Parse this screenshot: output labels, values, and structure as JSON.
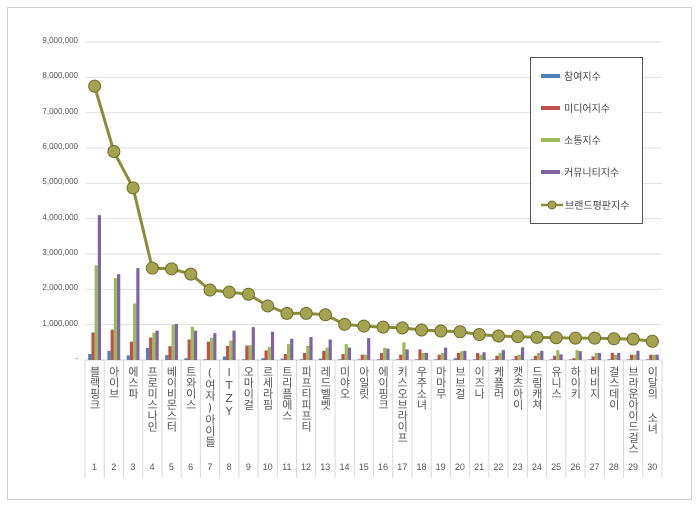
{
  "chart_data": {
    "type": "bar+line",
    "categories": [
      "블랙핑크",
      "아이브",
      "에스파",
      "프로미스나인",
      "베이비몬스터",
      "트와이스",
      "(여자)아이들",
      "ITZY",
      "오마이걸",
      "르세라핌",
      "트리플에스",
      "피프티피프티",
      "레드벨벳",
      "미야오",
      "아일릿",
      "에이핑크",
      "키스오브라이프",
      "우주소녀",
      "마마무",
      "브브걸",
      "이즈나",
      "케플러",
      "캣츠아이",
      "드림캐쳐",
      "유니스",
      "하이키",
      "비비지",
      "걸스데이",
      "브라운아이드걸스",
      "이달의 소녀"
    ],
    "ranks": [
      "1",
      "2",
      "3",
      "4",
      "5",
      "6",
      "7",
      "8",
      "9",
      "10",
      "11",
      "12",
      "13",
      "14",
      "15",
      "16",
      "17",
      "18",
      "19",
      "20",
      "21",
      "22",
      "23",
      "24",
      "25",
      "26",
      "27",
      "28",
      "29",
      "30"
    ],
    "ylim": [
      0,
      9000000
    ],
    "yticks": [
      "-",
      "1,000,000",
      "2,000,000",
      "3,000,000",
      "4,000,000",
      "5,000,000",
      "6,000,000",
      "7,000,000",
      "8,000,000",
      "9,000,000"
    ],
    "grid": true,
    "legend_position": "right",
    "series": [
      {
        "name": "참여지수",
        "type": "bar",
        "color": "#4f81bd",
        "values": [
          170000,
          260000,
          130000,
          340000,
          140000,
          50000,
          20000,
          100000,
          20000,
          50000,
          40000,
          20000,
          40000,
          20000,
          20000,
          20000,
          20000,
          20000,
          20000,
          50000,
          20000,
          20000,
          20000,
          20000,
          20000,
          20000,
          20000,
          20000,
          20000,
          20000
        ]
      },
      {
        "name": "미디어지수",
        "type": "bar",
        "color": "#c0504d",
        "values": [
          780000,
          860000,
          520000,
          640000,
          390000,
          580000,
          520000,
          400000,
          410000,
          270000,
          170000,
          200000,
          260000,
          170000,
          150000,
          200000,
          150000,
          300000,
          150000,
          200000,
          200000,
          120000,
          120000,
          120000,
          120000,
          50000,
          100000,
          200000,
          150000,
          150000
        ]
      },
      {
        "name": "소통지수",
        "type": "bar",
        "color": "#9bbb59",
        "values": [
          2680000,
          2320000,
          1600000,
          770000,
          1000000,
          940000,
          630000,
          550000,
          420000,
          370000,
          450000,
          400000,
          350000,
          450000,
          150000,
          350000,
          500000,
          200000,
          200000,
          250000,
          150000,
          200000,
          150000,
          200000,
          280000,
          280000,
          200000,
          150000,
          150000,
          150000
        ]
      },
      {
        "name": "커뮤니티지수",
        "type": "bar",
        "color": "#8064a2",
        "values": [
          4100000,
          2430000,
          2600000,
          830000,
          1020000,
          830000,
          760000,
          830000,
          930000,
          800000,
          600000,
          650000,
          580000,
          350000,
          620000,
          320000,
          300000,
          200000,
          350000,
          260000,
          220000,
          280000,
          360000,
          260000,
          160000,
          250000,
          200000,
          200000,
          260000,
          150000
        ]
      },
      {
        "name": "브랜드평판지수",
        "type": "line",
        "color": "#8c8c3c",
        "values": [
          7750000,
          5900000,
          4870000,
          2600000,
          2580000,
          2430000,
          1980000,
          1920000,
          1860000,
          1530000,
          1320000,
          1320000,
          1280000,
          1010000,
          960000,
          930000,
          910000,
          850000,
          820000,
          800000,
          720000,
          680000,
          660000,
          640000,
          630000,
          620000,
          620000,
          600000,
          590000,
          530000
        ]
      }
    ]
  }
}
